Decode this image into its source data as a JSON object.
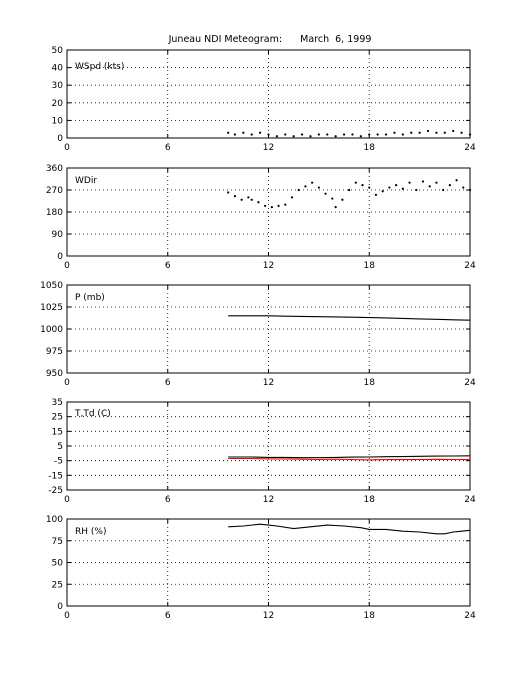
{
  "title": "Juneau NDI Meteogram:      March  6, 1999",
  "x_ticks": [
    0,
    6,
    12,
    18,
    24
  ],
  "colors": {
    "axis": "#000000",
    "grid": "#000000",
    "data": "#000000",
    "dewpoint": "#ff0000",
    "background": "#ffffff"
  },
  "chart_data": [
    {
      "type": "scatter",
      "label": "WSpd (kts)",
      "xlim": [
        0,
        24
      ],
      "ylim": [
        0,
        50
      ],
      "yticks": [
        0,
        10,
        20,
        30,
        40,
        50
      ],
      "grid": true,
      "series": [
        {
          "x": [
            9.6,
            10.0,
            10.5,
            11.0,
            11.5,
            12.0,
            12.5,
            13.0,
            13.5,
            14.0,
            14.5,
            15.0,
            15.5,
            16.0,
            16.5,
            17.0,
            17.5,
            18.0,
            18.5,
            19.0,
            19.5,
            20.0,
            20.5,
            21.0,
            21.5,
            22.0,
            22.5,
            23.0,
            23.5,
            24.0
          ],
          "y": [
            3,
            2,
            3,
            2,
            3,
            2,
            1,
            2,
            1,
            2,
            1,
            2,
            2,
            1,
            2,
            2,
            1,
            2,
            2,
            2,
            3,
            2,
            3,
            3,
            4,
            3,
            3,
            4,
            3,
            2
          ]
        }
      ]
    },
    {
      "type": "scatter",
      "label": "WDir",
      "xlim": [
        0,
        24
      ],
      "ylim": [
        0,
        360
      ],
      "yticks": [
        0,
        90,
        180,
        270,
        360
      ],
      "grid": true,
      "series": [
        {
          "x": [
            9.6,
            10.0,
            10.4,
            10.8,
            11.0,
            11.4,
            11.8,
            12.2,
            12.6,
            13.0,
            13.4,
            13.8,
            14.2,
            14.6,
            15.0,
            15.4,
            15.8,
            16.0,
            16.4,
            16.8,
            17.2,
            17.6,
            18.0,
            18.4,
            18.8,
            19.2,
            19.6,
            20.0,
            20.4,
            20.8,
            21.2,
            21.6,
            22.0,
            22.4,
            22.8,
            23.2,
            23.6,
            24.0
          ],
          "y": [
            260,
            245,
            230,
            240,
            230,
            220,
            205,
            200,
            205,
            210,
            240,
            270,
            285,
            300,
            280,
            255,
            235,
            200,
            230,
            270,
            300,
            290,
            280,
            250,
            265,
            280,
            290,
            275,
            300,
            270,
            305,
            285,
            300,
            270,
            290,
            310,
            280,
            270
          ]
        }
      ]
    },
    {
      "type": "line",
      "label": "P (mb)",
      "xlim": [
        0,
        24
      ],
      "ylim": [
        950,
        1050
      ],
      "yticks": [
        950,
        975,
        1000,
        1025,
        1050
      ],
      "grid": true,
      "series": [
        {
          "x": [
            9.6,
            11,
            12,
            13,
            14,
            15,
            16,
            17,
            18,
            19,
            20,
            21,
            22,
            23,
            24
          ],
          "y": [
            1015,
            1015,
            1015,
            1014.6,
            1014.3,
            1014,
            1013.7,
            1013.4,
            1013,
            1012.6,
            1012,
            1011.5,
            1011,
            1010.5,
            1010
          ]
        }
      ]
    },
    {
      "type": "line",
      "label": "T,Td (C)",
      "xlim": [
        0,
        24
      ],
      "ylim": [
        -25,
        35
      ],
      "yticks": [
        -25,
        -15,
        -5,
        5,
        15,
        25,
        35
      ],
      "grid": true,
      "series": [
        {
          "x": [
            9.6,
            11,
            12,
            13,
            14,
            15,
            16,
            17,
            18,
            19,
            20,
            21,
            22,
            23,
            24
          ],
          "y": [
            -2.5,
            -2.5,
            -2.8,
            -2.8,
            -3,
            -3,
            -2.8,
            -2.6,
            -2.5,
            -2.3,
            -2.2,
            -2,
            -1.9,
            -1.8,
            -1.7
          ]
        },
        {
          "x": [
            9.6,
            11,
            12,
            13,
            14,
            15,
            16,
            17,
            18,
            19,
            20,
            21,
            22,
            23,
            24
          ],
          "y": [
            -3.5,
            -3.5,
            -3.8,
            -3.8,
            -4,
            -4.2,
            -4,
            -4.2,
            -4.5,
            -4.2,
            -4.3,
            -4.2,
            -4.1,
            -4.2,
            -4.3
          ]
        }
      ]
    },
    {
      "type": "line",
      "label": "RH (%)",
      "xlim": [
        0,
        24
      ],
      "ylim": [
        0,
        100
      ],
      "yticks": [
        0,
        25,
        50,
        75,
        100
      ],
      "grid": true,
      "series": [
        {
          "x": [
            9.6,
            10.5,
            11.5,
            12.0,
            12.5,
            13.5,
            14.5,
            15.5,
            16.5,
            17.5,
            18.0,
            19.0,
            20.0,
            21.0,
            22.0,
            22.5,
            23.0,
            23.5,
            24.0
          ],
          "y": [
            91,
            92,
            94,
            93,
            92,
            89,
            91,
            93,
            92,
            90,
            88,
            88,
            86,
            85,
            83,
            83,
            85,
            86,
            87
          ]
        }
      ]
    }
  ]
}
